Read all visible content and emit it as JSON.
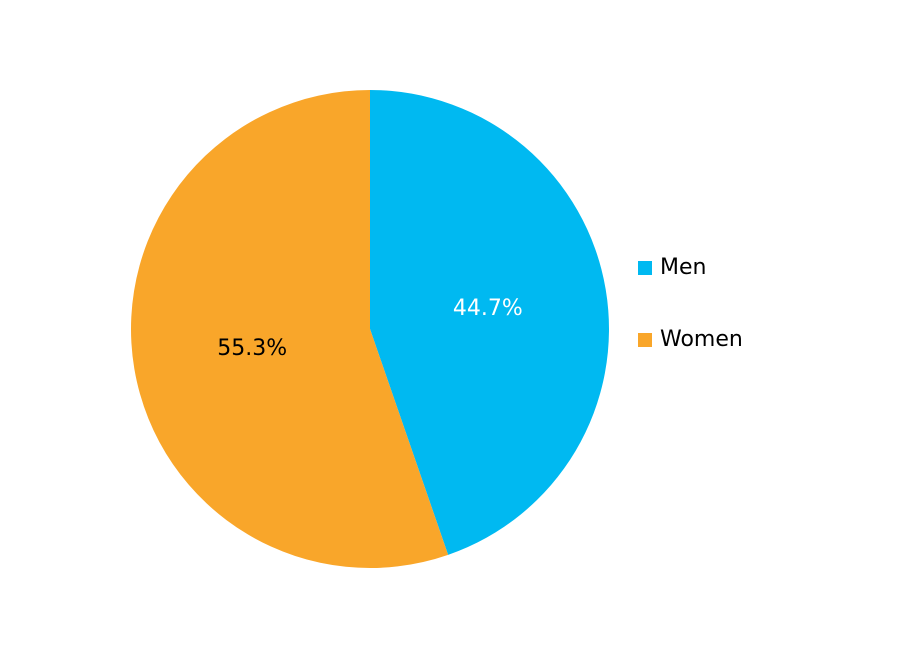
{
  "chart_data": {
    "type": "pie",
    "categories": [
      "Men",
      "Women"
    ],
    "values": [
      44.7,
      55.3
    ],
    "value_labels": [
      "44.7%",
      "55.3%"
    ],
    "colors": [
      "#00b9f1",
      "#f9a62a"
    ],
    "label_colors": [
      "#ffffff",
      "#000000"
    ]
  }
}
